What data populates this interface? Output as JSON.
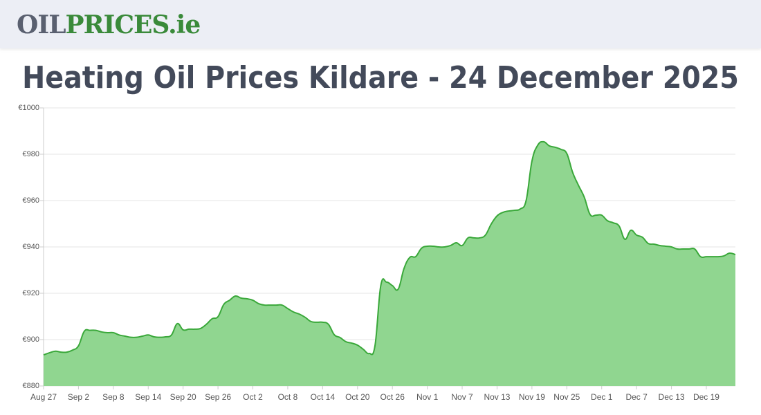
{
  "header": {
    "logo": [
      "OIL",
      "PRICES.ie"
    ]
  },
  "chart_data": {
    "type": "line",
    "title": "Heating Oil Prices Kildare - 24 December 2025",
    "categories": [
      "Aug 27",
      null,
      null,
      null,
      null,
      null,
      "Sep 2",
      null,
      null,
      null,
      null,
      null,
      "Sep 8",
      null,
      null,
      null,
      null,
      null,
      "Sep 14",
      null,
      null,
      null,
      null,
      null,
      "Sep 20",
      null,
      null,
      null,
      null,
      null,
      "Sep 26",
      null,
      null,
      null,
      null,
      null,
      "Oct 2",
      null,
      null,
      null,
      null,
      null,
      "Oct 8",
      null,
      null,
      null,
      null,
      null,
      "Oct 14",
      null,
      null,
      null,
      null,
      null,
      "Oct 20",
      null,
      null,
      null,
      null,
      null,
      "Oct 26",
      null,
      null,
      null,
      null,
      null,
      "Nov 1",
      null,
      null,
      null,
      null,
      null,
      "Nov 7",
      null,
      null,
      null,
      null,
      null,
      "Nov 13",
      null,
      null,
      null,
      null,
      null,
      "Nov 19",
      null,
      null,
      null,
      null,
      null,
      "Nov 25",
      null,
      null,
      null,
      null,
      null,
      "Dec 1",
      null,
      null,
      null,
      null,
      null,
      "Dec 7",
      null,
      null,
      null,
      null,
      null,
      "Dec 13",
      null,
      null,
      null,
      null,
      null,
      "Dec 19",
      null,
      null,
      null,
      null,
      null
    ],
    "values": [
      893.4,
      894.3,
      895,
      894.6,
      894.6,
      895.5,
      897.3,
      903.6,
      904,
      904,
      903.3,
      903,
      903,
      902,
      901.5,
      901,
      901,
      901.5,
      902,
      901.2,
      901,
      901.2,
      902,
      906.9,
      904.2,
      904.5,
      904.5,
      904.8,
      906.6,
      909,
      909.9,
      915.2,
      917,
      918.8,
      917.9,
      917.6,
      917,
      915.5,
      914.9,
      914.9,
      914.9,
      914.9,
      913.4,
      911.9,
      911,
      909.6,
      907.8,
      907.5,
      907.5,
      906.6,
      902.1,
      900.9,
      899.1,
      898.5,
      897.6,
      895.8,
      894,
      897.3,
      923.3,
      924.8,
      923.3,
      921.8,
      930.7,
      935.5,
      935.8,
      939.4,
      940.3,
      940.3,
      940,
      940,
      940.6,
      941.8,
      940.6,
      943.9,
      943.9,
      943.9,
      945.1,
      949.9,
      953.4,
      954.9,
      955.5,
      955.8,
      956.4,
      960,
      977,
      983.9,
      985.4,
      983.6,
      983,
      982.1,
      980.3,
      972.2,
      966.6,
      961.5,
      954,
      953.7,
      953.7,
      951.3,
      950.4,
      949,
      943.3,
      947.2,
      945.1,
      944.2,
      941.5,
      941.2,
      940.6,
      940.3,
      940,
      939.1,
      939.1,
      939.1,
      939.1,
      935.8,
      935.8,
      935.8,
      935.8,
      936.1,
      937.3,
      936.7
    ],
    "color": "#3aa83a",
    "fill": "#90d690",
    "ylim": [
      880,
      1000
    ],
    "yticks": [
      {
        "value": 880,
        "label": "€880"
      },
      {
        "value": 900,
        "label": "€900"
      },
      {
        "value": 920,
        "label": "€920"
      },
      {
        "value": 940,
        "label": "€940"
      },
      {
        "value": 960,
        "label": "€960"
      },
      {
        "value": 980,
        "label": "€980"
      },
      {
        "value": 1000,
        "label": "€1000"
      }
    ],
    "grid": true
  }
}
